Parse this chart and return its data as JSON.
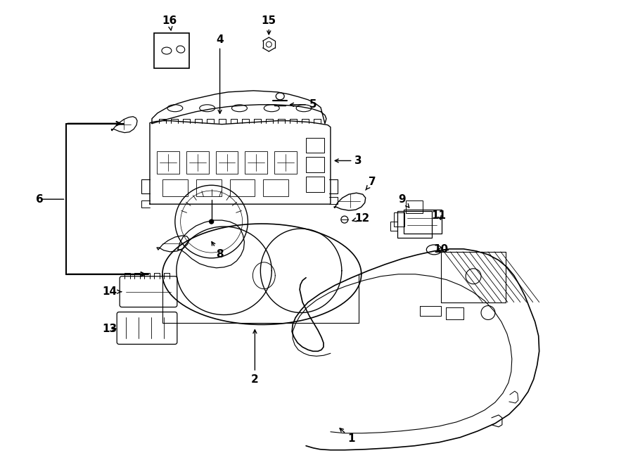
{
  "bg_color": "#ffffff",
  "line_color": "#000000",
  "lw": 1.0,
  "fig_w": 9.0,
  "fig_h": 6.61,
  "dpi": 100
}
